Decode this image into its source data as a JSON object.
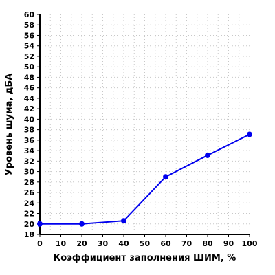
{
  "chart_data": {
    "type": "line",
    "title": "",
    "xlabel": "Коэффициент заполнения ШИМ, %",
    "ylabel": "Уровень шума, дБА",
    "xlim": [
      0,
      100
    ],
    "ylim": [
      18,
      60
    ],
    "xticks": [
      0,
      10,
      20,
      30,
      40,
      50,
      60,
      70,
      80,
      90,
      100
    ],
    "yticks": [
      18,
      20,
      22,
      24,
      26,
      28,
      30,
      32,
      34,
      36,
      38,
      40,
      42,
      44,
      46,
      48,
      50,
      52,
      54,
      56,
      58,
      60
    ],
    "grid": true,
    "x": [
      0,
      20,
      40,
      60,
      80,
      100
    ],
    "series": [
      {
        "values": [
          20.0,
          20.0,
          20.6,
          29.0,
          33.1,
          37.1
        ]
      }
    ],
    "colors": {
      "series": "#0000ee",
      "grid": "#c8c8c8",
      "axis": "#000000"
    }
  }
}
